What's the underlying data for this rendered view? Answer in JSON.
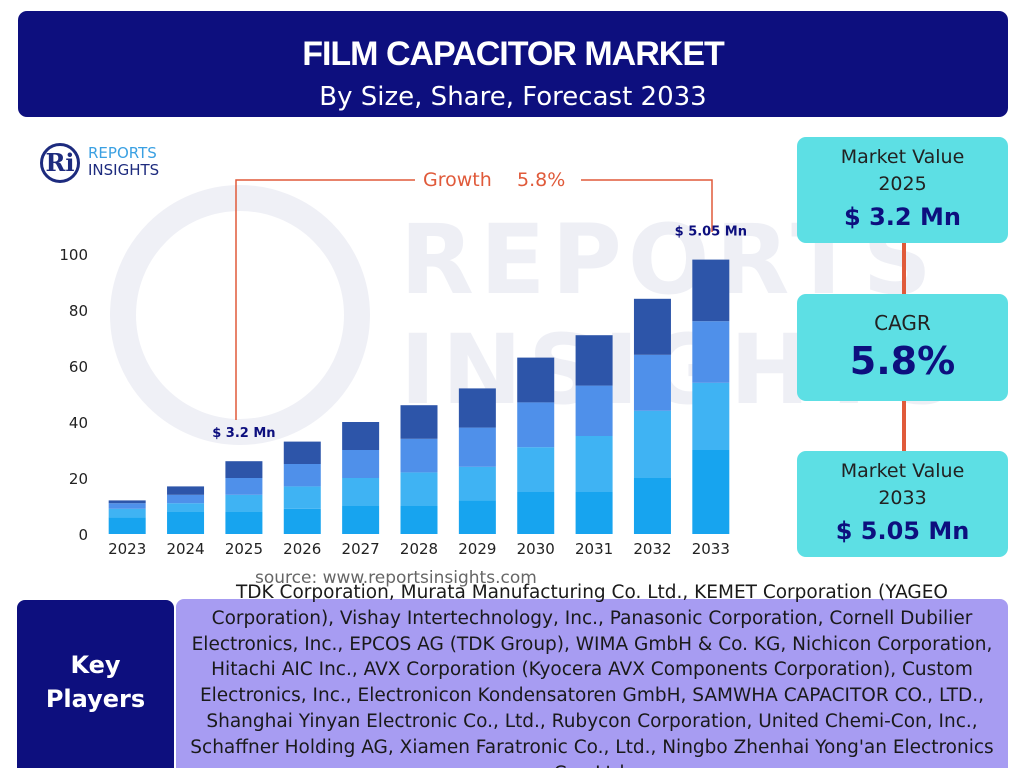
{
  "header": {
    "title": "FILM CAPACITOR MARKET",
    "subtitle": "By Size, Share, Forecast 2033"
  },
  "logo": {
    "monogram": "Ri",
    "line1": "REPORTS",
    "line2": "INSIGHTS"
  },
  "watermark": {
    "line1": "REPORTS",
    "line2": "INSIGHTS"
  },
  "growth_label": {
    "prefix": "Growth",
    "value": "5.8%"
  },
  "chart_data": {
    "type": "bar",
    "stacked": true,
    "categories": [
      "2023",
      "2024",
      "2025",
      "2026",
      "2027",
      "2028",
      "2029",
      "2030",
      "2031",
      "2032",
      "2033"
    ],
    "series": [
      {
        "values": [
          6,
          8,
          8,
          9,
          10,
          10,
          12,
          15,
          15,
          20,
          30
        ]
      },
      {
        "values": [
          3,
          3,
          6,
          8,
          10,
          12,
          12,
          16,
          20,
          24,
          24
        ]
      },
      {
        "values": [
          2,
          3,
          6,
          8,
          10,
          12,
          14,
          16,
          18,
          20,
          22
        ]
      },
      {
        "values": [
          1,
          3,
          6,
          8,
          10,
          12,
          14,
          16,
          18,
          20,
          22
        ]
      }
    ],
    "series_colors": [
      "#17a4ef",
      "#3fb3f3",
      "#4f90ea",
      "#2d55a9"
    ],
    "ylim": [
      0,
      100
    ],
    "yticks": [
      0,
      20,
      40,
      60,
      80,
      100
    ],
    "annotations": [
      {
        "category": "2025",
        "text": "$ 3.2 Mn"
      },
      {
        "category": "2033",
        "text": "$ 5.05 Mn"
      }
    ]
  },
  "stats": {
    "market_value_2025": {
      "label": "Market Value 2025",
      "value": "$ 3.2 Mn"
    },
    "cagr": {
      "label": "CAGR",
      "value": "5.8%"
    },
    "market_value_2033": {
      "label": "Market Value 2033",
      "value": "$ 5.05 Mn"
    }
  },
  "colors": {
    "navy": "#0d0f7e",
    "cyan": "#5ddfe4",
    "lavender": "#a79cf2",
    "accent_orange": "#e05a3a"
  },
  "source": "source: www.reportsinsights.com",
  "key_players": {
    "label": "Key Players",
    "text": "TDK Corporation, Murata Manufacturing Co. Ltd., KEMET Corporation (YAGEO Corporation), Vishay Intertechnology, Inc., Panasonic Corporation, Cornell Dubilier Electronics, Inc., EPCOS AG (TDK Group), WIMA GmbH & Co. KG, Nichicon Corporation, Hitachi AIC Inc., AVX Corporation (Kyocera AVX Components Corporation), Custom Electronics, Inc., Electronicon Kondensatoren GmbH, SAMWHA CAPACITOR CO., LTD., Shanghai Yinyan Electronic Co., Ltd., Rubycon Corporation, United Chemi-Con, Inc., Schaffner Holding AG, Xiamen Faratronic Co., Ltd., Ningbo Zhenhai Yong'an Electronics Co., Ltd."
  }
}
